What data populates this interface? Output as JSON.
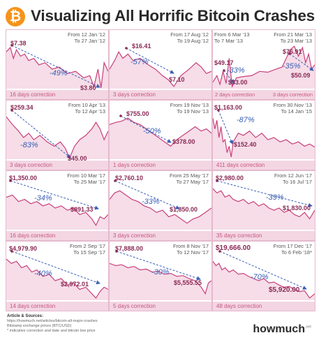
{
  "title": "Visualizing All Horrific Bitcoin Crashes",
  "logo_glyph": "₿",
  "colors": {
    "line": "#c8407a",
    "fill": "#f6dde8",
    "arrow": "#3a5fb5",
    "label": "#8a2a55",
    "grid_bg": "#e6b9cd"
  },
  "footer": {
    "heading": "Article & Sources:",
    "lines": [
      "https://howmuch.net/articles/bitcoin-all-major-crashes",
      "Bitstamp exchange prices (BTC/USD)",
      "* indicative correction and date and bitcoin low price"
    ]
  },
  "brand": {
    "name": "howmuch",
    "suffix": ".net"
  },
  "panels": [
    {
      "from": "From 12 Jan '12",
      "to": "To 27 Jan '12",
      "high": "$7.38",
      "low": "$3.80",
      "pct": "-49%",
      "correction": "16 days correction"
    },
    {
      "from": "From 17 Aug '12",
      "to": "To 19 Aug '12",
      "high": "$16.41",
      "low": "$7.10",
      "pct": "-57%",
      "correction": "3 days correction"
    },
    {
      "from": "From 6 Mar '13",
      "to": "To 7 Mar '13",
      "from2": "From 21 Mar '13",
      "to2": "To 23 Mar '13",
      "high": "$49.17",
      "low": "$33.00",
      "high2": "$76.91",
      "low2": "$50.09",
      "pct": "-33%",
      "pct2": "-35%",
      "correction": "2 days correction",
      "correction2": "3 days correction"
    },
    {
      "from": "From 10 Apr '13",
      "to": "To 12 Apr '13",
      "high": "$259.34",
      "low": "$45.00",
      "pct": "-83%",
      "correction": "3 days correction"
    },
    {
      "from": "From 19 Nov '13",
      "to": "To 19 Nov '13",
      "high": "$755.00",
      "low": "$378.00",
      "pct": "-50%",
      "correction": "1 days correction"
    },
    {
      "from": "From 30 Nov '13",
      "to": "To 14 Jan '15",
      "high": "$1,163.00",
      "low": "$152.40",
      "pct": "-87%",
      "correction": "411 days correction"
    },
    {
      "from": "From 10 Mar '17",
      "to": "To 25 Mar '17",
      "high": "$1,350.00",
      "low": "$891.33",
      "pct": "-34%",
      "correction": "16 days correction"
    },
    {
      "from": "From 25 May '17",
      "to": "To 27 May '17",
      "high": "$2,760.10",
      "low": "$1,850.00",
      "pct": "-33%",
      "correction": "3 days correction"
    },
    {
      "from": "From 12 Jun '17",
      "to": "To 16 Jul '17",
      "high": "$2,980.00",
      "low": "$1,830.00",
      "pct": "-39%",
      "correction": "35 days correction"
    },
    {
      "from": "From 2 Sep '17",
      "to": "To 15 Sep '17",
      "high": "$4,979.90",
      "low": "$2,972.01",
      "pct": "-40%",
      "correction": "14 days correction"
    },
    {
      "from": "From 8 Nov '17",
      "to": "To 12 Nov '17",
      "high": "$7,888.00",
      "low": "$5,555.55",
      "pct": "-30%",
      "correction": "5 days correction"
    },
    {
      "from": "From 17 Dec '17",
      "to": "To 6 Feb '18*",
      "high": "$19,666.00",
      "low": "$5,920.00",
      "pct": "-70%",
      "correction": "48 days correction"
    }
  ],
  "chart_data": [
    {
      "type": "line",
      "title": "",
      "high": 7.38,
      "low": 3.8,
      "change": "-49%",
      "x": [
        "12 Jan '12",
        "27 Jan '12"
      ],
      "y": [
        7.38,
        3.8
      ]
    },
    {
      "type": "line",
      "title": "",
      "high": 16.41,
      "low": 7.1,
      "change": "-57%",
      "x": [
        "17 Aug '12",
        "19 Aug '12"
      ],
      "y": [
        16.41,
        7.1
      ]
    },
    {
      "type": "line",
      "title": "",
      "series": [
        {
          "name": "",
          "x": [
            "6 Mar '13",
            "7 Mar '13"
          ],
          "y": [
            49.17,
            33.0
          ],
          "change": "-33%"
        },
        {
          "name": "",
          "x": [
            "21 Mar '13",
            "23 Mar '13"
          ],
          "y": [
            76.91,
            50.09
          ],
          "change": "-35%"
        }
      ]
    },
    {
      "type": "line",
      "title": "",
      "high": 259.34,
      "low": 45.0,
      "change": "-83%",
      "x": [
        "10 Apr '13",
        "12 Apr '13"
      ],
      "y": [
        259.34,
        45.0
      ]
    },
    {
      "type": "line",
      "title": "",
      "high": 755.0,
      "low": 378.0,
      "change": "-50%",
      "x": [
        "19 Nov '13",
        "19 Nov '13"
      ],
      "y": [
        755.0,
        378.0
      ]
    },
    {
      "type": "line",
      "title": "",
      "high": 1163.0,
      "low": 152.4,
      "change": "-87%",
      "x": [
        "30 Nov '13",
        "14 Jan '15"
      ],
      "y": [
        1163.0,
        152.4
      ]
    },
    {
      "type": "line",
      "title": "",
      "high": 1350.0,
      "low": 891.33,
      "change": "-34%",
      "x": [
        "10 Mar '17",
        "25 Mar '17"
      ],
      "y": [
        1350.0,
        891.33
      ]
    },
    {
      "type": "line",
      "title": "",
      "high": 2760.1,
      "low": 1850.0,
      "change": "-33%",
      "x": [
        "25 May '17",
        "27 May '17"
      ],
      "y": [
        2760.1,
        1850.0
      ]
    },
    {
      "type": "line",
      "title": "",
      "high": 2980.0,
      "low": 1830.0,
      "change": "-39%",
      "x": [
        "12 Jun '17",
        "16 Jul '17"
      ],
      "y": [
        2980.0,
        1830.0
      ]
    },
    {
      "type": "line",
      "title": "",
      "high": 4979.9,
      "low": 2972.01,
      "change": "-40%",
      "x": [
        "2 Sep '17",
        "15 Sep '17"
      ],
      "y": [
        4979.9,
        2972.01
      ]
    },
    {
      "type": "line",
      "title": "",
      "high": 7888.0,
      "low": 5555.55,
      "change": "-30%",
      "x": [
        "8 Nov '17",
        "12 Nov '17"
      ],
      "y": [
        7888.0,
        5555.55
      ]
    },
    {
      "type": "line",
      "title": "",
      "high": 19666.0,
      "low": 5920.0,
      "change": "-70%",
      "x": [
        "17 Dec '17",
        "6 Feb '18"
      ],
      "y": [
        19666.0,
        5920.0
      ]
    }
  ]
}
